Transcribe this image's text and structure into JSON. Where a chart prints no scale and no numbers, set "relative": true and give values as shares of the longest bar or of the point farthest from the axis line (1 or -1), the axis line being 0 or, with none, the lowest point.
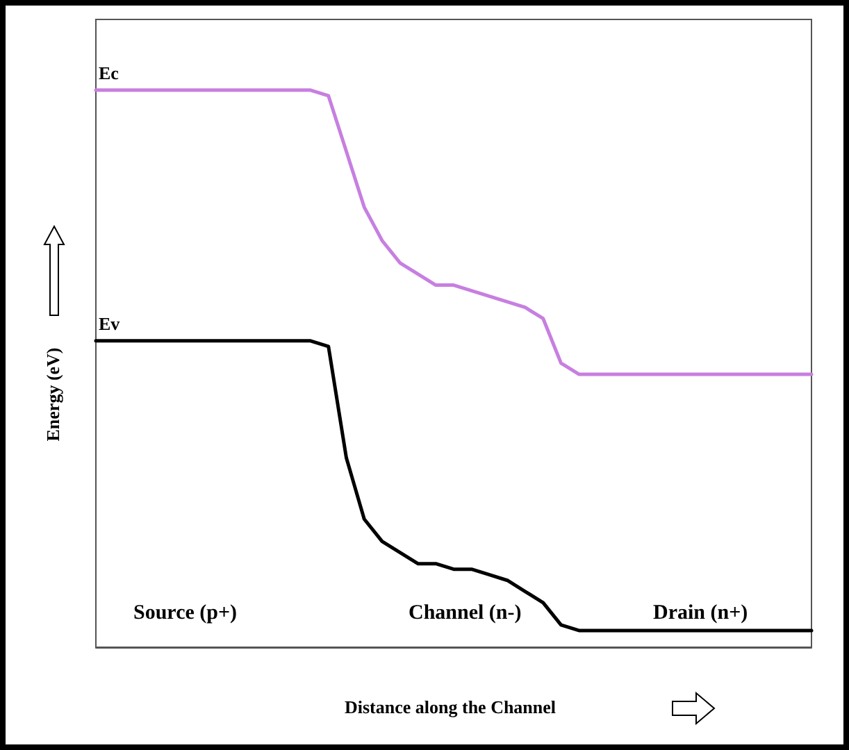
{
  "chart_data": {
    "type": "line",
    "relative": true,
    "xlabel": "Distance along the Channel",
    "ylabel": "Energy (eV)",
    "categories": [
      null,
      null,
      null,
      null,
      null,
      null,
      null,
      null,
      null,
      null,
      null,
      null,
      null,
      null,
      null,
      null,
      null,
      null,
      null,
      null,
      null,
      null,
      null,
      null,
      null,
      null,
      null,
      null,
      null,
      null,
      null,
      null,
      null,
      null,
      null,
      null,
      null,
      null,
      null,
      null,
      null
    ],
    "series": [
      {
        "name": "Ec",
        "color": "#c77fe0",
        "values": [
          1,
          1,
          1,
          1,
          1,
          1,
          1,
          1,
          1,
          1,
          1,
          1,
          1,
          0.99,
          0.89,
          0.79,
          0.73,
          0.69,
          0.67,
          0.65,
          0.65,
          0.64,
          0.63,
          0.62,
          0.61,
          0.59,
          0.51,
          0.49,
          0.49,
          0.49,
          0.49,
          0.49,
          0.49,
          0.49,
          0.49,
          0.49,
          0.49,
          0.49,
          0.49,
          0.49,
          0.49
        ]
      },
      {
        "name": "Ev",
        "color": "#000000",
        "values": [
          0.55,
          0.55,
          0.55,
          0.55,
          0.55,
          0.55,
          0.55,
          0.55,
          0.55,
          0.55,
          0.55,
          0.55,
          0.55,
          0.54,
          0.34,
          0.23,
          0.19,
          0.17,
          0.15,
          0.15,
          0.14,
          0.14,
          0.13,
          0.12,
          0.1,
          0.08,
          0.04,
          0.03,
          0.03,
          0.03,
          0.03,
          0.03,
          0.03,
          0.03,
          0.03,
          0.03,
          0.03,
          0.03,
          0.03,
          0.03,
          0.03
        ]
      }
    ],
    "annotations": [
      "Source (p+)",
      "Channel (n-)",
      "Drain (n+)"
    ],
    "grid": false,
    "legend": false,
    "marker": "none",
    "line_style": "solid"
  }
}
